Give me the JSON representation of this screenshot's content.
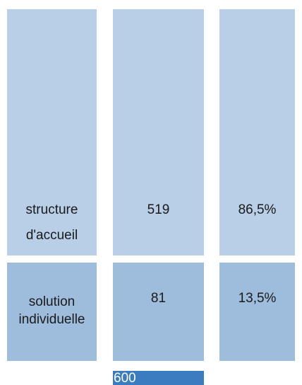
{
  "table": {
    "rows": [
      [
        "structure d'accueil",
        "519",
        "86,5%"
      ],
      [
        "solution individuelle",
        "81",
        "13,5%"
      ]
    ],
    "total": "600"
  }
}
